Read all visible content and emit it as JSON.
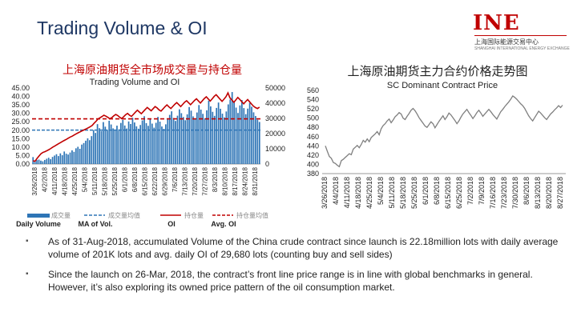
{
  "title": "Trading Volume & OI",
  "logo": {
    "mark": "INE",
    "cn": "上海国际能源交易中心",
    "en": "SHANGHAI INTERNATIONAL ENERGY EXCHANGE"
  },
  "bullets": [
    "As of 31-Aug-2018, accumulated Volume of the China crude contract  since launch is 22.18million lots  with daily average volume of  201K lots and avg. daily OI of 29,680 lots (counting buy and sell sides)",
    "Since the launch on 26-Mar, 2018, the contract’s front line price range is in line with global benchmarks in general. However, it’s also exploring its owned price pattern of the oil consumption market."
  ],
  "chart_data": [
    {
      "type": "bar",
      "title": "上海原油期货全市场成交量与持仓量",
      "subtitle": "Trading Volume and OI",
      "left_ticks": [
        "45.00",
        "40.00",
        "35.00",
        "30.00",
        "25.00",
        "20.00",
        "15.00",
        "10.00",
        "5.00",
        "0.00"
      ],
      "right_ticks": [
        "50000",
        "40000",
        "30000",
        "20000",
        "10000",
        "0"
      ],
      "ylim_left": [
        0,
        45
      ],
      "ylim_right": [
        0,
        50000
      ],
      "x_tick_labels": [
        "3/26/2018",
        "4/2/2018",
        "4/11/2018",
        "4/18/2018",
        "4/25/2018",
        "5/4/2018",
        "5/11/2018",
        "5/18/2018",
        "5/25/2018",
        "6/1/2018",
        "6/8/2018",
        "6/15/2018",
        "6/22/2018",
        "6/29/2018",
        "7/6/2018",
        "7/13/2018",
        "7/20/2018",
        "7/27/2018",
        "8/3/2018",
        "8/10/2018",
        "8/17/2018",
        "8/24/2018",
        "8/31/2018"
      ],
      "x_tick_display": [
        "3/26/2018",
        "4/2/2018",
        "4/11/2018",
        "4/18/2018",
        "4/25/2018",
        "5/4/2018",
        "5/11/2018",
        "5/18/2018",
        "5/25/2018",
        "6/1/2018",
        "6/8/2018",
        "6/15/2018",
        "6/22/2018",
        "6/29/2018",
        "7/6/2018",
        "7/13/2018",
        "7/20/2018",
        "7/27/2018",
        "8/3/2018",
        "8/10/2018",
        "8/17/2018",
        "8/24/2018",
        "8/31/2018"
      ],
      "series": [
        {
          "name": "Daily Volume",
          "cn_name": "成交量",
          "kind": "bar",
          "axis": "left",
          "color": "#2e75b6",
          "values": [
            4.1,
            1.9,
            2.3,
            2.6,
            2.0,
            1.6,
            2.4,
            3.1,
            3.7,
            2.9,
            4.2,
            5.0,
            5.8,
            4.7,
            6.3,
            5.2,
            7.4,
            6.1,
            5.6,
            6.8,
            8.1,
            7.2,
            9.3,
            10.2,
            9.0,
            11.5,
            12.4,
            13.8,
            15.2,
            14.1,
            16.5,
            20.1,
            18.4,
            23.6,
            21.2,
            19.5,
            24.8,
            22.1,
            20.3,
            25.6,
            23.4,
            21.1,
            19.8,
            22.7,
            20.5,
            24.3,
            26.1,
            22.8,
            21.0,
            25.2,
            23.7,
            27.4,
            24.6,
            22.3,
            20.9,
            23.1,
            25.8,
            28.3,
            24.2,
            22.6,
            26.7,
            23.9,
            21.5,
            24.4,
            27.9,
            25.1,
            22.2,
            20.8,
            23.5,
            26.4,
            29.1,
            31.2,
            27.3,
            25.5,
            28.6,
            32.4,
            30.1,
            27.8,
            25.9,
            29.4,
            33.7,
            31.6,
            28.2,
            26.8,
            30.5,
            34.9,
            32.2,
            29.7,
            27.1,
            31.8,
            37.5,
            34.1,
            30.9,
            28.5,
            33.2,
            36.4,
            32.7,
            29.8,
            27.6,
            31.1,
            35.3,
            38.2,
            42.6,
            36.8,
            33.4,
            30.2,
            34.7,
            37.9,
            33.1,
            29.5,
            32.8,
            36.1,
            33.9,
            30.6,
            28.4,
            26.2,
            24.9
          ]
        },
        {
          "name": "MA of Vol.",
          "cn_name": "成交量均值",
          "kind": "hline",
          "axis": "left",
          "color": "#2e75b6",
          "value": 20.1
        },
        {
          "name": "OI",
          "cn_name": "持仓量",
          "kind": "line",
          "axis": "right",
          "color": "#c00000",
          "values": [
            2100,
            1800,
            3600,
            5200,
            6700,
            7600,
            8100,
            8700,
            9400,
            10200,
            11100,
            11800,
            12600,
            13400,
            14100,
            14900,
            15600,
            16300,
            17100,
            17800,
            18400,
            19200,
            19900,
            20600,
            21200,
            21900,
            22500,
            23100,
            23800,
            24500,
            25300,
            26800,
            28100,
            29600,
            30400,
            31200,
            32100,
            31500,
            30700,
            29800,
            30500,
            31700,
            32600,
            31900,
            30800,
            29900,
            31100,
            32400,
            33300,
            32100,
            31300,
            32700,
            34100,
            35400,
            34200,
            33100,
            34500,
            35900,
            37200,
            36100,
            35000,
            36400,
            37800,
            36900,
            35600,
            34800,
            36200,
            37700,
            38900,
            37600,
            36500,
            37900,
            39300,
            40400,
            39100,
            37800,
            39200,
            40700,
            41600,
            40300,
            39000,
            40400,
            41800,
            42900,
            41500,
            40100,
            41600,
            43100,
            44200,
            42800,
            41400,
            42900,
            44500,
            45600,
            44100,
            42600,
            41200,
            42700,
            44300,
            46800,
            43500,
            42100,
            40600,
            42200,
            43800,
            42500,
            41000,
            39600,
            41100,
            42400,
            40900,
            39400,
            38000,
            37100,
            36500,
            37400
          ]
        },
        {
          "name": "Avg. OI",
          "cn_name": "持仓量均值",
          "kind": "hline",
          "axis": "right",
          "color": "#c00000",
          "value": 29680
        }
      ]
    },
    {
      "type": "line",
      "title": "上海原油期货主力合约价格走势图",
      "subtitle": "SC Dominant Contract Price",
      "ylim": [
        380,
        560
      ],
      "y_ticks": [
        560,
        540,
        520,
        500,
        480,
        460,
        440,
        420,
        400,
        380
      ],
      "x_tick_labels": [
        "3/26/2018",
        "4/4/2018",
        "4/11/2018",
        "4/18/2018",
        "4/25/2018",
        "5/4/2018",
        "5/11/2018",
        "5/18/2018",
        "5/25/2018",
        "6/1/2018",
        "6/8/2018",
        "6/15/2018",
        "6/25/2018",
        "7/2/2018",
        "7/9/2018",
        "7/16/2018",
        "7/23/2018",
        "7/30/2018",
        "8/6/2018",
        "8/13/2018",
        "8/20/2018",
        "8/27/2018"
      ],
      "series": [
        {
          "color": "#7f7f7f",
          "values": [
            440,
            428,
            417,
            413,
            404,
            402,
            398,
            395,
            408,
            411,
            415,
            419,
            423,
            421,
            433,
            437,
            441,
            436,
            443,
            452,
            448,
            455,
            449,
            458,
            462,
            466,
            471,
            464,
            477,
            484,
            488,
            494,
            498,
            490,
            496,
            503,
            507,
            512,
            509,
            500,
            497,
            504,
            510,
            517,
            521,
            516,
            509,
            501,
            495,
            489,
            483,
            480,
            486,
            492,
            488,
            479,
            486,
            493,
            499,
            505,
            497,
            503,
            511,
            507,
            501,
            495,
            488,
            494,
            502,
            509,
            514,
            519,
            512,
            506,
            499,
            505,
            512,
            517,
            511,
            504,
            509,
            514,
            519,
            514,
            508,
            503,
            498,
            506,
            514,
            519,
            525,
            530,
            535,
            541,
            548,
            545,
            541,
            536,
            531,
            527,
            521,
            513,
            505,
            499,
            494,
            501,
            508,
            515,
            511,
            506,
            501,
            497,
            503,
            509,
            513,
            518,
            522,
            527,
            523,
            528
          ]
        }
      ]
    }
  ]
}
